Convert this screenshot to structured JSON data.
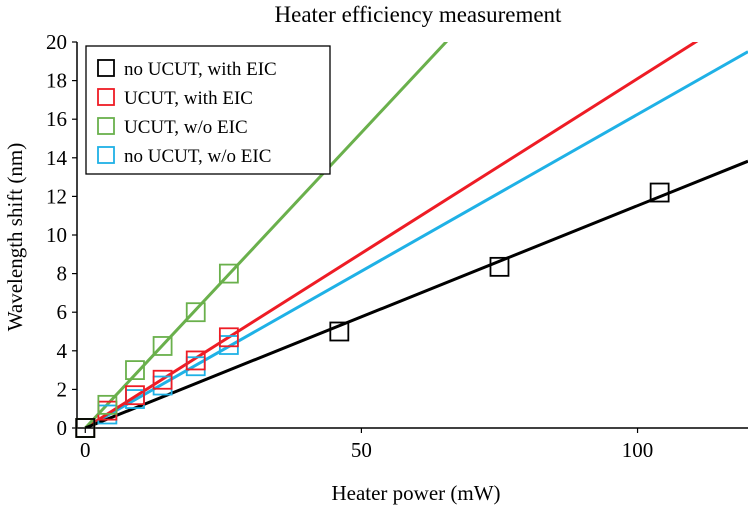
{
  "chart_data": {
    "type": "scatter",
    "title": "Heater efficiency measurement",
    "xlabel": "Heater power (mW)",
    "ylabel": "Wavelength shift (nm)",
    "xlim": [
      -1.5,
      120
    ],
    "ylim": [
      0,
      20
    ],
    "x_ticks": [
      "0",
      "50",
      "100"
    ],
    "y_ticks": [
      "0",
      "2",
      "4",
      "6",
      "8",
      "10",
      "12",
      "14",
      "16",
      "18",
      "20"
    ],
    "grid": false,
    "legend_position": "top-left",
    "series": [
      {
        "name": "no UCUT, with EIC",
        "color": "#000000",
        "points": [
          [
            0,
            0
          ],
          [
            46,
            5.0
          ],
          [
            75,
            8.35
          ],
          [
            104,
            12.2
          ]
        ],
        "fit_slope": 0.1152
      },
      {
        "name": "UCUT, with EIC",
        "color": "#ee1c25",
        "points": [
          [
            0,
            0
          ],
          [
            4,
            0.9
          ],
          [
            9,
            1.7
          ],
          [
            14,
            2.5
          ],
          [
            20,
            3.5
          ],
          [
            26,
            4.7
          ]
        ],
        "fit_slope": 0.181
      },
      {
        "name": "UCUT, w/o EIC",
        "color": "#6ab04c",
        "points": [
          [
            0,
            0
          ],
          [
            4,
            1.2
          ],
          [
            9,
            3.0
          ],
          [
            14,
            4.25
          ],
          [
            20,
            6.0
          ],
          [
            26,
            8.0
          ]
        ],
        "fit_slope": 0.3062
      },
      {
        "name": "no UCUT, w/o EIC",
        "color": "#1fb1e6",
        "points": [
          [
            0,
            0
          ],
          [
            4,
            0.7
          ],
          [
            9,
            1.5
          ],
          [
            14,
            2.2
          ],
          [
            20,
            3.2
          ],
          [
            26,
            4.3
          ]
        ],
        "fit_slope": 0.1625
      }
    ]
  }
}
